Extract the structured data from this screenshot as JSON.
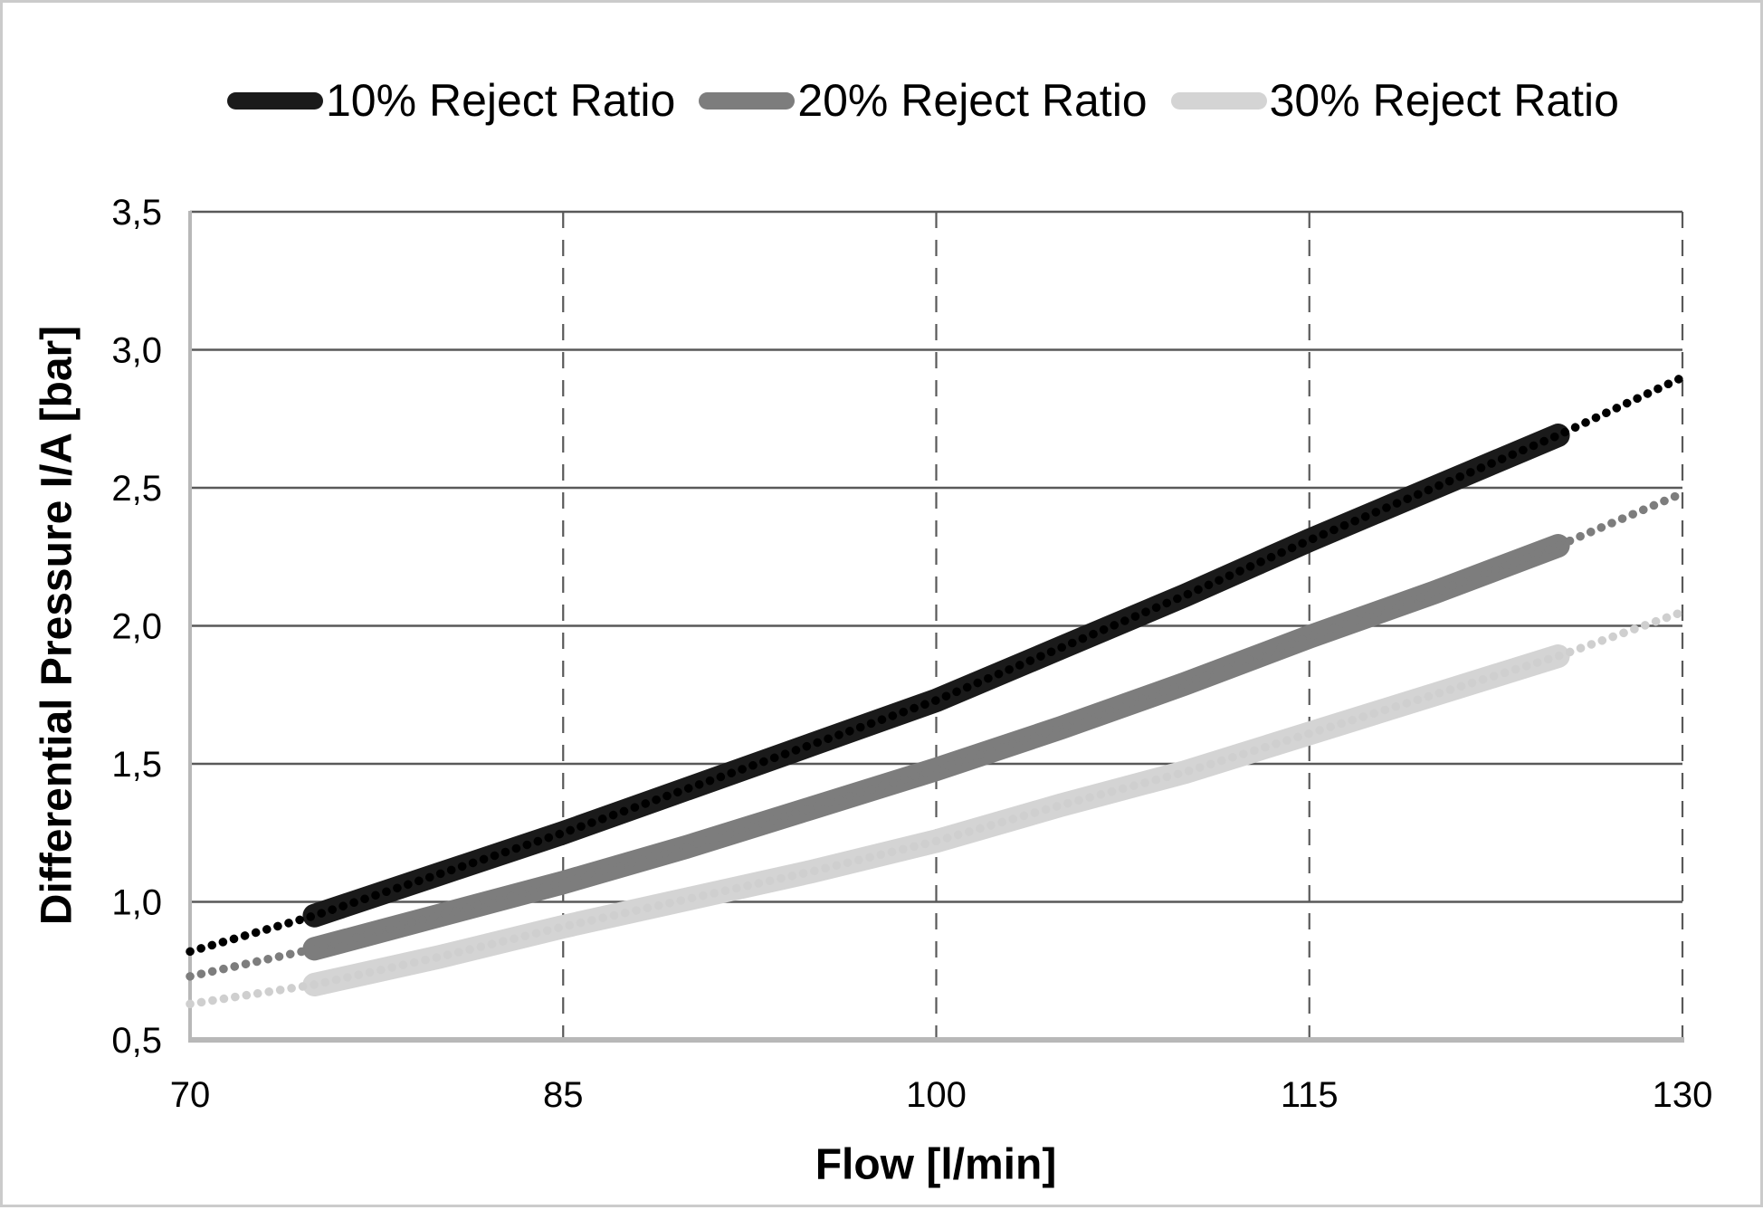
{
  "chart_data": {
    "type": "line",
    "title": "",
    "xlabel": "Flow [l/min]",
    "ylabel": "Differential Pressure I/A  [bar]",
    "xlim": [
      70,
      130
    ],
    "ylim": [
      0.5,
      3.5
    ],
    "x_ticks": [
      {
        "value": 70,
        "label": "70"
      },
      {
        "value": 85,
        "label": "85"
      },
      {
        "value": 100,
        "label": "100"
      },
      {
        "value": 115,
        "label": "115"
      },
      {
        "value": 130,
        "label": "130"
      }
    ],
    "y_ticks": [
      {
        "value": 0.5,
        "label": "0,5"
      },
      {
        "value": 1.0,
        "label": "1,0"
      },
      {
        "value": 1.5,
        "label": "1,5"
      },
      {
        "value": 2.0,
        "label": "2,0"
      },
      {
        "value": 2.5,
        "label": "2,5"
      },
      {
        "value": 3.0,
        "label": "3,0"
      },
      {
        "value": 3.5,
        "label": "3,5"
      }
    ],
    "grid": {
      "horizontal_style": "solid",
      "vertical_style": "dashed",
      "color": "#595959"
    },
    "axis_line_color": "#b8b8b8",
    "legend_position": "top",
    "x": [
      70,
      75,
      80,
      85,
      90,
      95,
      100,
      105,
      110,
      115,
      120,
      125,
      130
    ],
    "series": [
      {
        "name": "10% Reject Ratio",
        "color": "#1a1a1a",
        "dot_color": "#000000",
        "line_style": "solid-with-dotted-overlay",
        "solid_range": [
          75,
          125
        ],
        "dotted_range": [
          70,
          130
        ],
        "values": [
          0.82,
          0.95,
          1.1,
          1.25,
          1.41,
          1.57,
          1.73,
          1.92,
          2.11,
          2.31,
          2.5,
          2.69,
          2.9
        ]
      },
      {
        "name": "20% Reject Ratio",
        "color": "#7d7d7d",
        "dot_color": "#7d7d7d",
        "line_style": "solid-with-dotted-overlay",
        "solid_range": [
          75,
          125
        ],
        "dotted_range": [
          70,
          130
        ],
        "values": [
          0.73,
          0.83,
          0.95,
          1.07,
          1.2,
          1.34,
          1.48,
          1.63,
          1.79,
          1.96,
          2.12,
          2.29,
          2.48
        ]
      },
      {
        "name": "30% Reject Ratio",
        "color": "#d4d4d4",
        "dot_color": "#cfcfcf",
        "line_style": "solid-with-dotted-overlay",
        "solid_range": [
          75,
          125
        ],
        "dotted_range": [
          70,
          130
        ],
        "values": [
          0.63,
          0.7,
          0.8,
          0.91,
          1.01,
          1.11,
          1.22,
          1.35,
          1.47,
          1.61,
          1.75,
          1.89,
          2.05
        ]
      }
    ]
  }
}
